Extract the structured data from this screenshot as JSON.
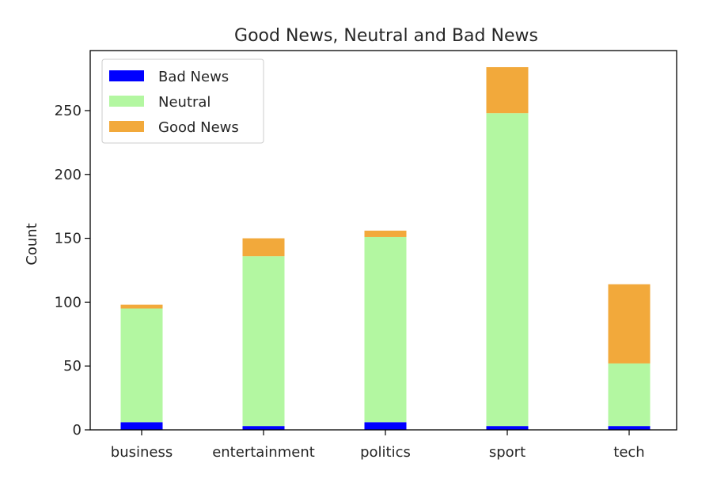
{
  "chart_data": {
    "type": "bar",
    "stacked": true,
    "title": "Good News, Neutral and Bad News",
    "xlabel": "",
    "ylabel": "Count",
    "categories": [
      "business",
      "entertainment",
      "politics",
      "sport",
      "tech"
    ],
    "series": [
      {
        "name": "Bad News",
        "color": "#0000ff",
        "values": [
          6,
          3,
          6,
          3,
          3
        ]
      },
      {
        "name": "Neutral",
        "color": "#b3f7a1",
        "values": [
          89,
          133,
          145,
          245,
          49
        ]
      },
      {
        "name": "Good News",
        "color": "#f2a93b",
        "values": [
          3,
          14,
          5,
          36,
          62
        ]
      }
    ],
    "ylim": [
      0,
      297
    ],
    "yticks": [
      0,
      50,
      100,
      150,
      200,
      250
    ],
    "grid": false,
    "legend": "top-left"
  }
}
